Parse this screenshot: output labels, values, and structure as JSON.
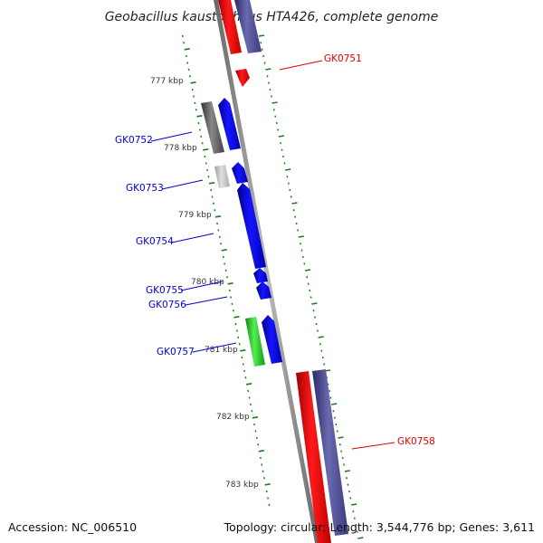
{
  "title": "Geobacillus kaustophilus HTA426, complete genome",
  "footer": {
    "accession": "Accession: NC_006510",
    "topology": "Topology: circular; Length: 3,544,776 bp; Genes: 3,611"
  },
  "colors": {
    "backbone": "#8a8a8a",
    "tick": "#1e7a1e",
    "forward_gene": "#0000ee",
    "reverse_gene": "#ee0000",
    "rrna_like": "#555599",
    "gray_gene": "#666666",
    "light_gray_gene": "#bbbbbb",
    "green_gene": "#22bb22",
    "label_blue": "#0000cc",
    "label_red": "#dd0000"
  },
  "kbp_labels": [
    "777 kbp",
    "778 kbp",
    "779 kbp",
    "780 kbp",
    "781 kbp",
    "782 kbp",
    "783 kbp"
  ],
  "gene_labels": [
    {
      "id": "GK0751",
      "color": "#dd0000"
    },
    {
      "id": "GK0752",
      "color": "#0000cc"
    },
    {
      "id": "GK0753",
      "color": "#0000cc"
    },
    {
      "id": "GK0754",
      "color": "#0000cc"
    },
    {
      "id": "GK0755",
      "color": "#0000cc"
    },
    {
      "id": "GK0756",
      "color": "#0000cc"
    },
    {
      "id": "GK0757",
      "color": "#0000cc"
    },
    {
      "id": "GK0758",
      "color": "#dd0000"
    }
  ]
}
